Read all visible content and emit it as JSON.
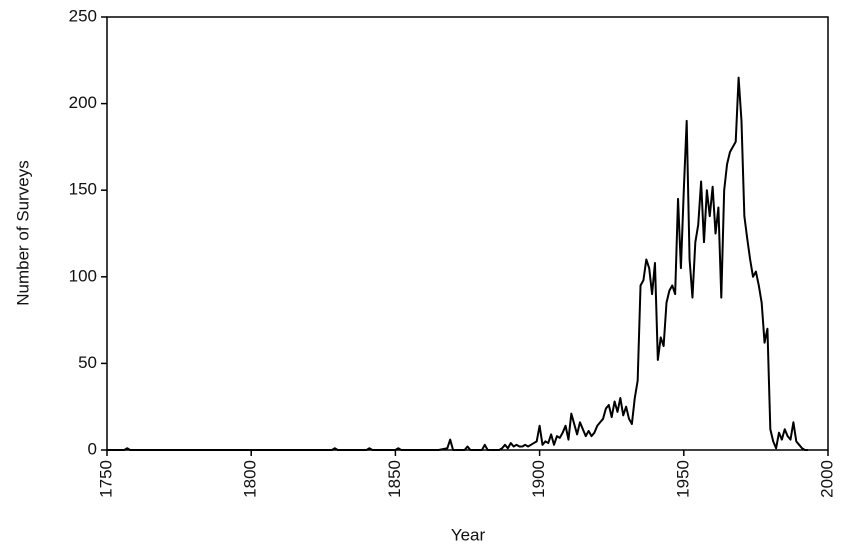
{
  "chart_data": {
    "type": "line",
    "x_label": "Year",
    "y_label": "Number of Surveys",
    "xlim": [
      1750,
      2000
    ],
    "xticks": [
      1750,
      1800,
      1850,
      1900,
      1950,
      2000
    ],
    "ylim": [
      0,
      250
    ],
    "yticks": [
      0,
      50,
      100,
      150,
      200,
      250
    ],
    "grid": false,
    "series": [
      {
        "color": "#000000",
        "x": [
          1750,
          1756,
          1757,
          1758,
          1800,
          1828,
          1829,
          1830,
          1840,
          1841,
          1842,
          1850,
          1851,
          1852,
          1865,
          1868,
          1869,
          1870,
          1874,
          1875,
          1876,
          1880,
          1881,
          1882,
          1886,
          1887,
          1888,
          1889,
          1890,
          1891,
          1892,
          1893,
          1894,
          1895,
          1896,
          1897,
          1898,
          1899,
          1900,
          1901,
          1902,
          1903,
          1904,
          1905,
          1906,
          1907,
          1908,
          1909,
          1910,
          1911,
          1912,
          1913,
          1914,
          1915,
          1916,
          1917,
          1918,
          1919,
          1920,
          1921,
          1922,
          1923,
          1924,
          1925,
          1926,
          1927,
          1928,
          1929,
          1930,
          1931,
          1932,
          1933,
          1934,
          1935,
          1936,
          1937,
          1938,
          1939,
          1940,
          1941,
          1942,
          1943,
          1944,
          1945,
          1946,
          1947,
          1948,
          1949,
          1950,
          1951,
          1952,
          1953,
          1954,
          1955,
          1956,
          1957,
          1958,
          1959,
          1960,
          1961,
          1962,
          1963,
          1964,
          1965,
          1966,
          1967,
          1968,
          1969,
          1970,
          1971,
          1972,
          1973,
          1974,
          1975,
          1976,
          1977,
          1978,
          1979,
          1980,
          1981,
          1982,
          1983,
          1984,
          1985,
          1986,
          1987,
          1988,
          1989,
          1990,
          1991,
          1992,
          1993
        ],
        "values": [
          0,
          0,
          1,
          0,
          0,
          0,
          1,
          0,
          0,
          1,
          0,
          0,
          1,
          0,
          0,
          1,
          6,
          0,
          0,
          2,
          0,
          0,
          3,
          0,
          0,
          1,
          3,
          1,
          4,
          2,
          3,
          2,
          2,
          3,
          2,
          3,
          4,
          5,
          14,
          3,
          5,
          4,
          9,
          3,
          8,
          7,
          10,
          14,
          6,
          21,
          15,
          9,
          16,
          12,
          8,
          11,
          8,
          10,
          14,
          16,
          18,
          24,
          26,
          19,
          28,
          22,
          30,
          20,
          25,
          18,
          15,
          30,
          40,
          95,
          98,
          110,
          105,
          90,
          108,
          52,
          65,
          60,
          85,
          92,
          95,
          90,
          145,
          105,
          150,
          190,
          110,
          88,
          120,
          130,
          155,
          120,
          150,
          135,
          152,
          125,
          140,
          88,
          150,
          165,
          172,
          175,
          178,
          215,
          190,
          135,
          122,
          110,
          100,
          103,
          95,
          85,
          62,
          70,
          12,
          5,
          1,
          10,
          6,
          12,
          8,
          6,
          16,
          5,
          3,
          1,
          0,
          0
        ]
      }
    ]
  }
}
